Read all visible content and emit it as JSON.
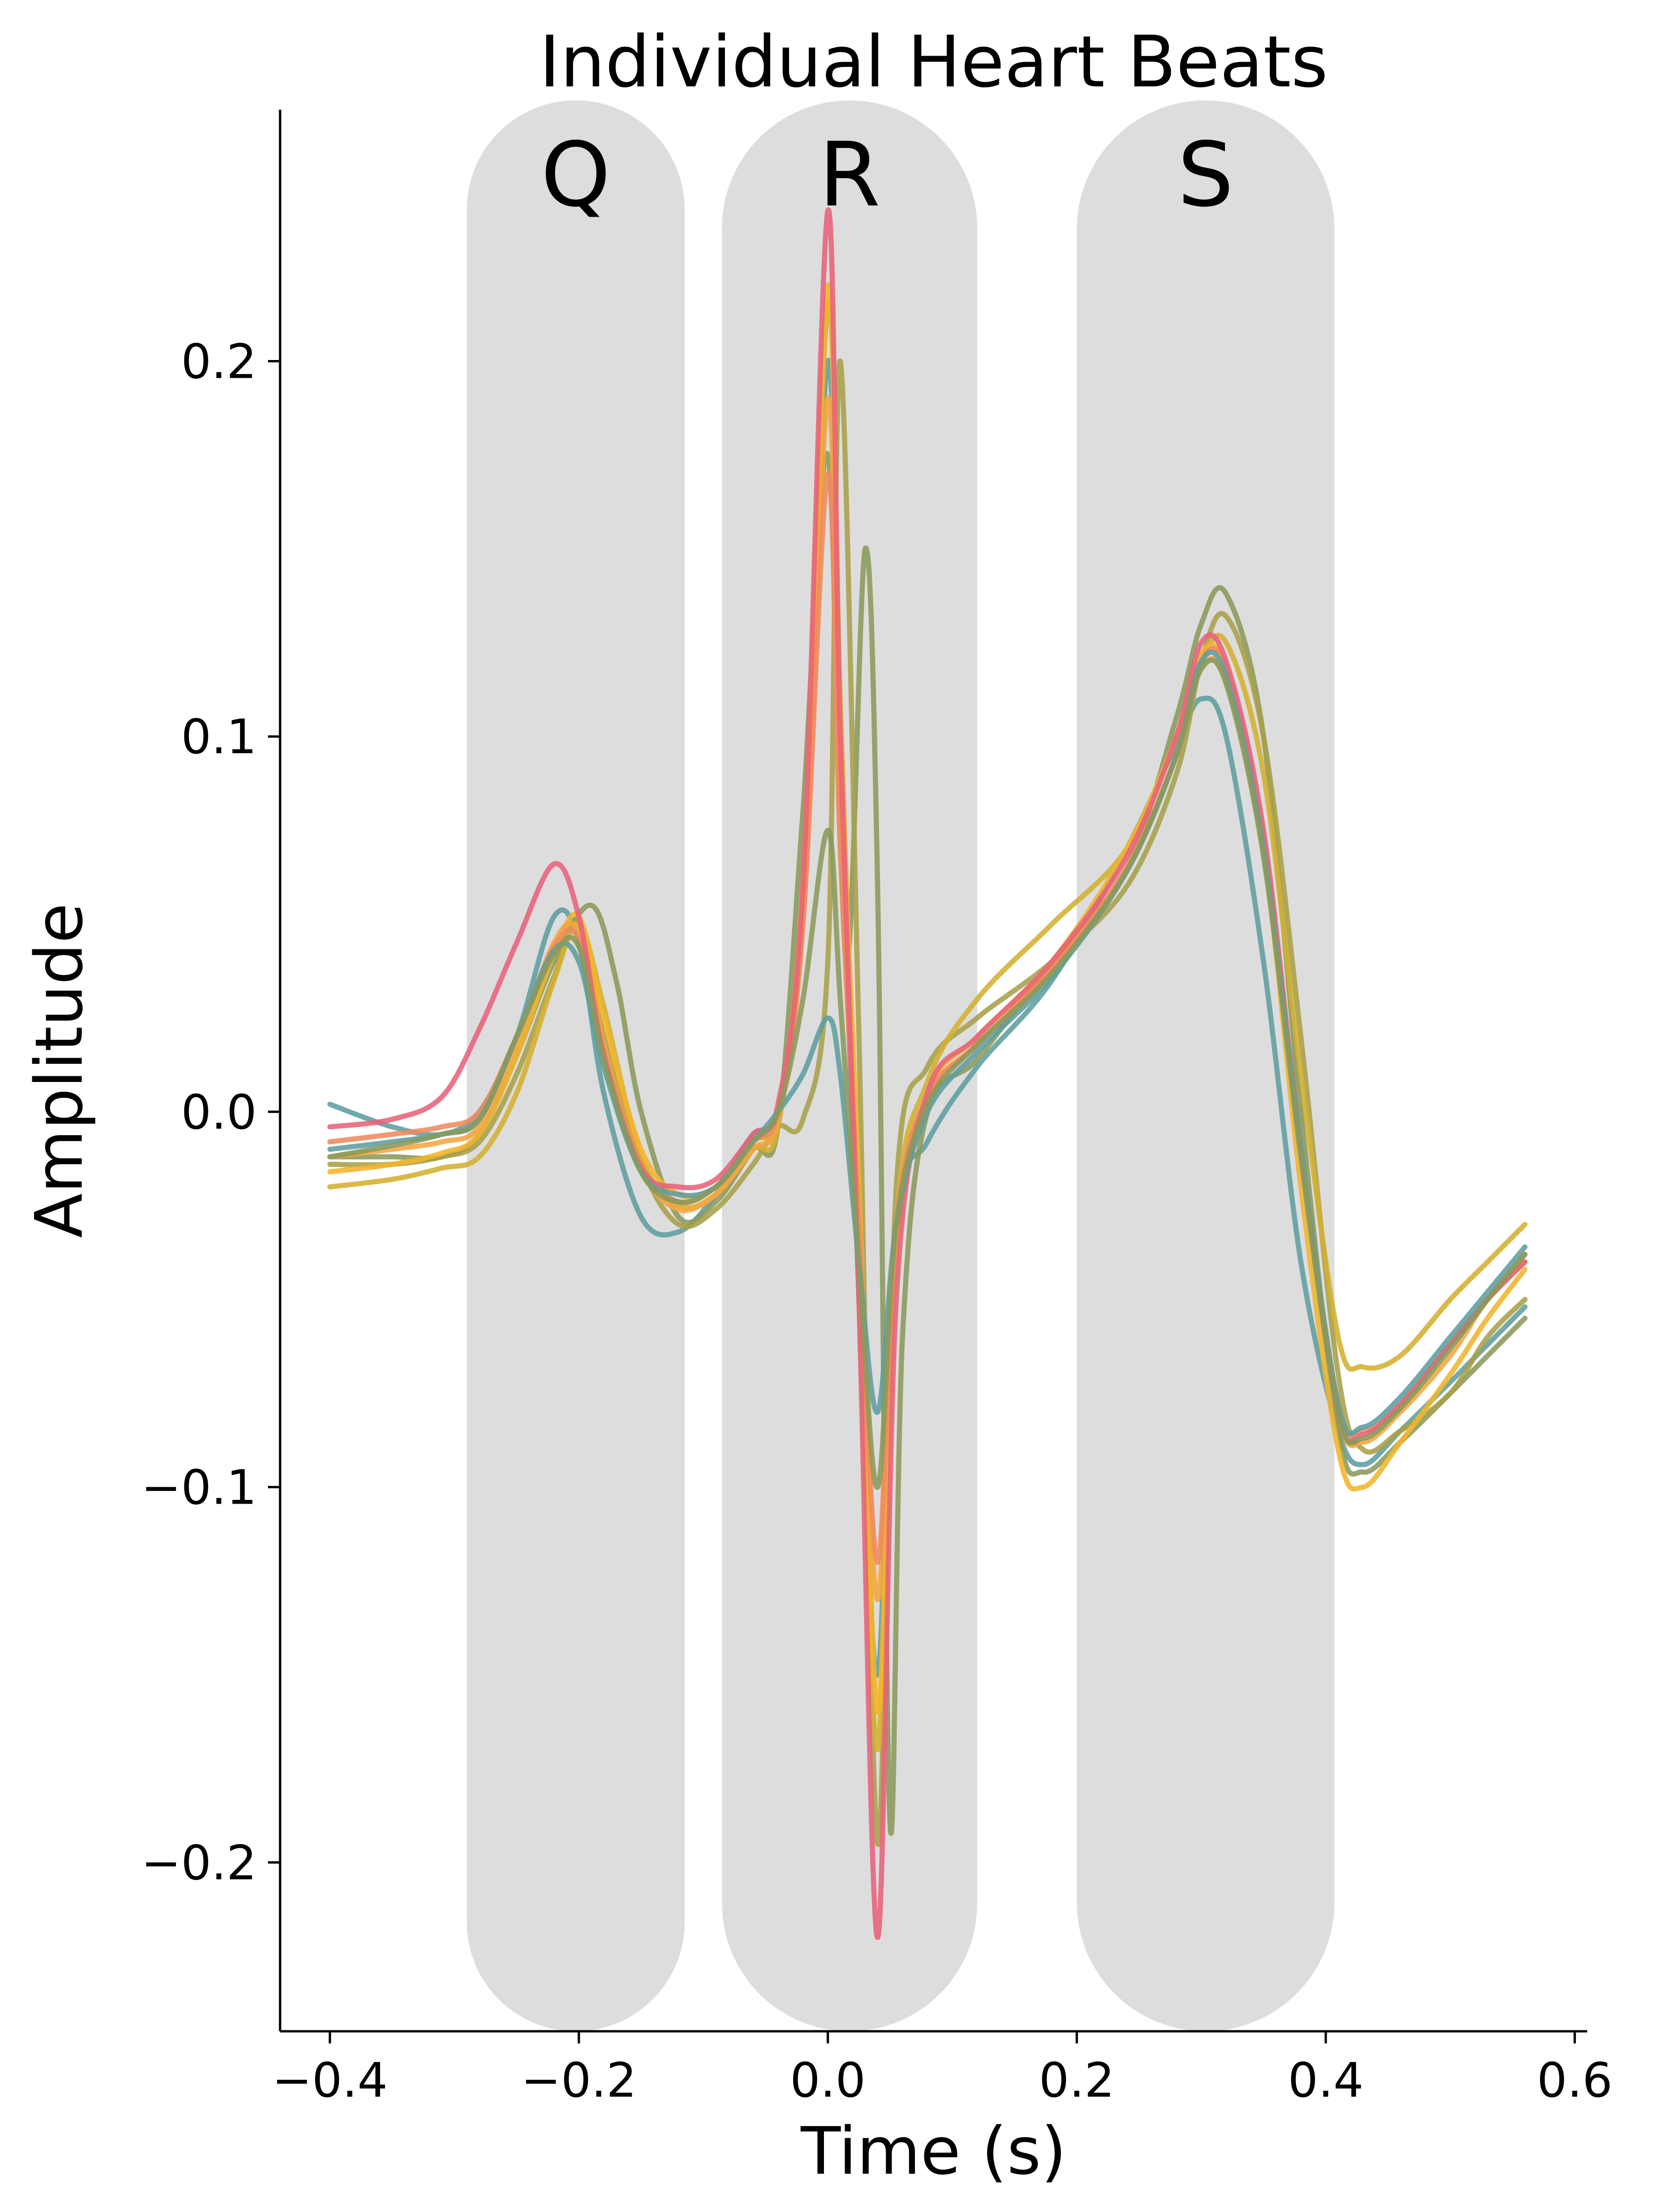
{
  "chart_data": {
    "type": "line",
    "title": "Individual Heart Beats",
    "xlabel": "Time (s)",
    "ylabel": "Amplitude",
    "xlim": [
      -0.44,
      0.61
    ],
    "ylim": [
      -0.245,
      0.267
    ],
    "xticks": [
      -0.4,
      -0.2,
      0.0,
      0.2,
      0.4,
      0.6
    ],
    "xtick_labels": [
      "−0.4",
      "−0.2",
      "0.0",
      "0.2",
      "0.4",
      "0.6"
    ],
    "yticks": [
      -0.2,
      -0.1,
      0.0,
      0.1,
      0.2
    ],
    "ytick_labels": [
      "−0.2",
      "−0.1",
      "0.0",
      "0.1",
      "0.2"
    ],
    "grid": false,
    "legend": "none",
    "bands": [
      {
        "label": "Q",
        "x0": -0.29,
        "x1": -0.115
      },
      {
        "label": "R",
        "x0": -0.085,
        "x1": 0.12
      },
      {
        "label": "S",
        "x0": 0.2,
        "x1": 0.407
      }
    ],
    "band_y": [
      -0.245,
      0.27
    ],
    "band_color": "#dddddd",
    "colors": [
      "#5f9ea0",
      "#8a9a5b",
      "#a8a04a",
      "#d4b030",
      "#f2b52a",
      "#f4a640",
      "#f08a5d",
      "#e8627a"
    ],
    "series": [
      {
        "x": [
          -0.4,
          -0.35,
          -0.31,
          -0.28,
          -0.25,
          -0.22,
          -0.2,
          -0.18,
          -0.15,
          -0.12,
          -0.09,
          -0.06,
          -0.04,
          -0.02,
          0.0,
          0.01,
          0.025,
          0.04,
          0.055,
          0.08,
          0.12,
          0.18,
          0.24,
          0.28,
          0.3,
          0.32,
          0.35,
          0.38,
          0.41,
          0.43,
          0.46,
          0.5,
          0.53,
          0.56
        ],
        "y": [
          0.002,
          -0.004,
          -0.006,
          0.0,
          0.02,
          0.052,
          0.045,
          0.005,
          -0.028,
          -0.032,
          -0.022,
          -0.006,
          -0.002,
          0.06,
          0.2,
          0.09,
          -0.05,
          -0.15,
          -0.03,
          -0.008,
          0.012,
          0.035,
          0.07,
          0.098,
          0.11,
          0.1,
          0.04,
          -0.04,
          -0.085,
          -0.094,
          -0.085,
          -0.072,
          -0.062,
          -0.052
        ]
      },
      {
        "x": [
          -0.4,
          -0.35,
          -0.31,
          -0.28,
          -0.25,
          -0.22,
          -0.19,
          -0.17,
          -0.15,
          -0.12,
          -0.09,
          -0.06,
          -0.04,
          -0.02,
          0.0,
          0.015,
          0.03,
          0.04,
          0.05,
          0.06,
          0.08,
          0.12,
          0.18,
          0.24,
          0.28,
          0.3,
          0.32,
          0.35,
          0.38,
          0.41,
          0.43,
          0.46,
          0.5,
          0.53,
          0.56
        ],
        "y": [
          -0.012,
          -0.012,
          -0.012,
          -0.006,
          0.015,
          0.04,
          0.055,
          0.035,
          0.0,
          -0.028,
          -0.024,
          -0.01,
          -0.004,
          0.08,
          0.175,
          0.04,
          0.15,
          0.06,
          -0.19,
          -0.06,
          0.0,
          0.014,
          0.04,
          0.065,
          0.105,
          0.13,
          0.138,
          0.1,
          0.0,
          -0.085,
          -0.096,
          -0.088,
          -0.075,
          -0.065,
          -0.055
        ]
      },
      {
        "x": [
          -0.4,
          -0.35,
          -0.31,
          -0.28,
          -0.25,
          -0.22,
          -0.2,
          -0.18,
          -0.15,
          -0.12,
          -0.09,
          -0.06,
          -0.04,
          -0.02,
          0.0,
          0.01,
          0.025,
          0.04,
          0.055,
          0.08,
          0.12,
          0.18,
          0.24,
          0.28,
          0.3,
          0.32,
          0.35,
          0.38,
          0.41,
          0.43,
          0.46,
          0.5,
          0.53,
          0.56
        ],
        "y": [
          -0.014,
          -0.014,
          -0.012,
          -0.008,
          0.01,
          0.036,
          0.05,
          0.02,
          -0.014,
          -0.03,
          -0.026,
          -0.014,
          -0.004,
          -0.002,
          0.04,
          0.2,
          0.02,
          -0.195,
          -0.02,
          0.012,
          0.025,
          0.04,
          0.06,
          0.09,
          0.12,
          0.132,
          0.1,
          0.02,
          -0.07,
          -0.09,
          -0.085,
          -0.075,
          -0.06,
          -0.05
        ]
      },
      {
        "x": [
          -0.4,
          -0.35,
          -0.31,
          -0.28,
          -0.25,
          -0.22,
          -0.2,
          -0.18,
          -0.15,
          -0.12,
          -0.09,
          -0.06,
          -0.04,
          -0.02,
          0.0,
          0.01,
          0.025,
          0.04,
          0.055,
          0.08,
          0.12,
          0.18,
          0.24,
          0.28,
          0.3,
          0.32,
          0.35,
          0.38,
          0.41,
          0.43,
          0.46,
          0.5,
          0.53,
          0.56
        ],
        "y": [
          -0.02,
          -0.018,
          -0.015,
          -0.012,
          0.005,
          0.035,
          0.05,
          0.028,
          -0.012,
          -0.025,
          -0.022,
          -0.01,
          -0.004,
          0.06,
          0.215,
          0.11,
          -0.04,
          -0.17,
          -0.03,
          0.008,
          0.03,
          0.05,
          0.07,
          0.1,
          0.12,
          0.125,
          0.09,
          0.01,
          -0.06,
          -0.068,
          -0.065,
          -0.05,
          -0.04,
          -0.03
        ]
      },
      {
        "x": [
          -0.4,
          -0.35,
          -0.31,
          -0.28,
          -0.25,
          -0.22,
          -0.2,
          -0.18,
          -0.15,
          -0.12,
          -0.09,
          -0.06,
          -0.04,
          -0.02,
          0.0,
          0.01,
          0.025,
          0.04,
          0.055,
          0.08,
          0.12,
          0.18,
          0.24,
          0.28,
          0.3,
          0.32,
          0.35,
          0.38,
          0.41,
          0.43,
          0.46,
          0.5,
          0.53,
          0.56
        ],
        "y": [
          -0.016,
          -0.014,
          -0.011,
          -0.006,
          0.015,
          0.042,
          0.052,
          0.025,
          -0.01,
          -0.022,
          -0.02,
          -0.008,
          0.0,
          0.06,
          0.22,
          0.1,
          -0.02,
          -0.16,
          -0.04,
          0.005,
          0.02,
          0.04,
          0.07,
          0.1,
          0.122,
          0.118,
          0.07,
          -0.02,
          -0.09,
          -0.1,
          -0.088,
          -0.07,
          -0.055,
          -0.042
        ]
      },
      {
        "x": [
          -0.4,
          -0.35,
          -0.31,
          -0.28,
          -0.25,
          -0.22,
          -0.2,
          -0.18,
          -0.15,
          -0.12,
          -0.09,
          -0.06,
          -0.04,
          -0.02,
          0.0,
          0.01,
          0.025,
          0.04,
          0.055,
          0.08,
          0.12,
          0.18,
          0.24,
          0.28,
          0.3,
          0.32,
          0.35,
          0.38,
          0.41,
          0.43,
          0.46,
          0.5,
          0.53,
          0.56
        ],
        "y": [
          -0.012,
          -0.01,
          -0.008,
          -0.004,
          0.018,
          0.045,
          0.048,
          0.018,
          -0.015,
          -0.026,
          -0.022,
          -0.01,
          -0.002,
          0.05,
          0.19,
          0.08,
          -0.03,
          -0.13,
          -0.03,
          0.004,
          0.018,
          0.038,
          0.065,
          0.095,
          0.118,
          0.115,
          0.07,
          -0.01,
          -0.08,
          -0.088,
          -0.08,
          -0.065,
          -0.05,
          -0.04
        ]
      },
      {
        "x": [
          -0.4,
          -0.35,
          -0.31,
          -0.28,
          -0.25,
          -0.22,
          -0.2,
          -0.18,
          -0.15,
          -0.12,
          -0.09,
          -0.06,
          -0.04,
          -0.02,
          0.0,
          0.01,
          0.025,
          0.04,
          0.055,
          0.08,
          0.12,
          0.18,
          0.24,
          0.28,
          0.3,
          0.32,
          0.35,
          0.38,
          0.41,
          0.43,
          0.46,
          0.5,
          0.53,
          0.56
        ],
        "y": [
          -0.008,
          -0.006,
          -0.004,
          0.0,
          0.02,
          0.044,
          0.046,
          0.016,
          -0.014,
          -0.024,
          -0.02,
          -0.008,
          0.0,
          0.05,
          0.17,
          0.07,
          -0.03,
          -0.12,
          -0.03,
          0.004,
          0.018,
          0.038,
          0.065,
          0.095,
          0.12,
          0.118,
          0.072,
          -0.01,
          -0.078,
          -0.085,
          -0.078,
          -0.062,
          -0.05,
          -0.038
        ]
      },
      {
        "x": [
          -0.4,
          -0.35,
          -0.31,
          -0.28,
          -0.25,
          -0.22,
          -0.2,
          -0.18,
          -0.15,
          -0.12,
          -0.09,
          -0.06,
          -0.04,
          -0.02,
          0.0,
          0.01,
          0.025,
          0.04,
          0.055,
          0.08,
          0.12,
          0.18,
          0.24,
          0.28,
          0.3,
          0.32,
          0.35,
          0.38,
          0.41,
          0.43,
          0.46,
          0.5,
          0.53,
          0.56
        ],
        "y": [
          -0.004,
          -0.002,
          0.004,
          0.022,
          0.045,
          0.066,
          0.052,
          0.015,
          -0.015,
          -0.02,
          -0.018,
          -0.006,
          0.002,
          0.06,
          0.24,
          0.1,
          -0.05,
          -0.22,
          -0.05,
          0.005,
          0.02,
          0.04,
          0.068,
          0.1,
          0.125,
          0.12,
          0.075,
          -0.01,
          -0.08,
          -0.086,
          -0.078,
          -0.062,
          -0.05,
          -0.04
        ]
      },
      {
        "x": [
          -0.4,
          -0.35,
          -0.31,
          -0.28,
          -0.25,
          -0.22,
          -0.2,
          -0.18,
          -0.15,
          -0.12,
          -0.09,
          -0.06,
          -0.04,
          -0.02,
          0.0,
          0.01,
          0.025,
          0.04,
          0.055,
          0.08,
          0.12,
          0.18,
          0.24,
          0.28,
          0.3,
          0.32,
          0.35,
          0.38,
          0.41,
          0.43,
          0.46,
          0.5,
          0.53,
          0.56
        ],
        "y": [
          -0.01,
          -0.008,
          -0.006,
          -0.002,
          0.02,
          0.043,
          0.04,
          0.012,
          -0.016,
          -0.022,
          -0.02,
          -0.008,
          0.0,
          0.01,
          0.025,
          0.01,
          -0.04,
          -0.08,
          -0.03,
          0.0,
          0.016,
          0.036,
          0.064,
          0.095,
          0.12,
          0.116,
          0.07,
          -0.01,
          -0.078,
          -0.084,
          -0.076,
          -0.06,
          -0.048,
          -0.036
        ]
      },
      {
        "x": [
          -0.4,
          -0.35,
          -0.31,
          -0.28,
          -0.25,
          -0.22,
          -0.2,
          -0.18,
          -0.15,
          -0.12,
          -0.09,
          -0.06,
          -0.04,
          -0.02,
          0.0,
          0.01,
          0.025,
          0.04,
          0.055,
          0.08,
          0.12,
          0.18,
          0.24,
          0.28,
          0.3,
          0.32,
          0.35,
          0.38,
          0.41,
          0.43,
          0.46,
          0.5,
          0.53,
          0.56
        ],
        "y": [
          -0.012,
          -0.009,
          -0.006,
          -0.002,
          0.02,
          0.042,
          0.044,
          0.014,
          -0.016,
          -0.024,
          -0.02,
          -0.008,
          0.0,
          0.03,
          0.075,
          0.03,
          -0.04,
          -0.1,
          -0.03,
          0.002,
          0.018,
          0.037,
          0.064,
          0.095,
          0.118,
          0.114,
          0.068,
          -0.012,
          -0.08,
          -0.087,
          -0.079,
          -0.063,
          -0.05,
          -0.038
        ]
      }
    ]
  }
}
